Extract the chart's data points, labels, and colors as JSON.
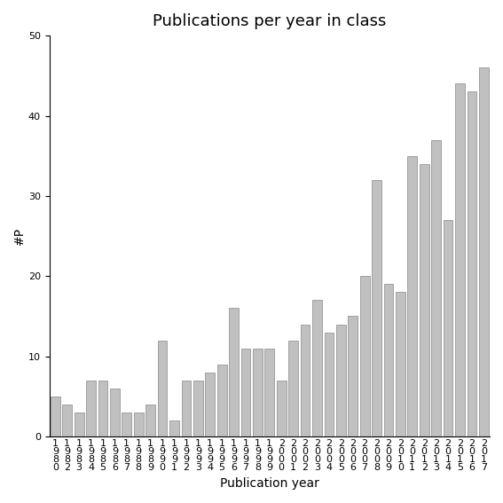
{
  "title": "Publications per year in class",
  "xlabel": "Publication year",
  "ylabel": "#P",
  "ylim": [
    0,
    50
  ],
  "yticks": [
    0,
    10,
    20,
    30,
    40,
    50
  ],
  "year_labels": [
    "1980",
    "1982",
    "1983",
    "1984",
    "1985",
    "1986",
    "1987",
    "1988",
    "1989",
    "1990",
    "1991",
    "1992",
    "1993",
    "1994",
    "1995",
    "1996",
    "1997",
    "1998",
    "1999",
    "2000",
    "2001",
    "2002",
    "2003",
    "2004",
    "2005",
    "2006",
    "2007",
    "2008",
    "2009",
    "2010",
    "2011",
    "2012",
    "2013",
    "2014",
    "2015",
    "2016",
    "2017"
  ],
  "values": [
    5,
    4,
    3,
    7,
    7,
    6,
    3,
    3,
    4,
    12,
    2,
    7,
    7,
    8,
    9,
    16,
    11,
    11,
    11,
    7,
    12,
    14,
    17,
    13,
    14,
    15,
    20,
    32,
    19,
    18,
    35,
    34,
    37,
    27,
    44,
    43,
    46
  ],
  "bar_color": "#c0c0c0",
  "bar_edgecolor": "#888888",
  "background_color": "#ffffff",
  "title_fontsize": 13,
  "axis_label_fontsize": 10,
  "tick_fontsize": 8
}
